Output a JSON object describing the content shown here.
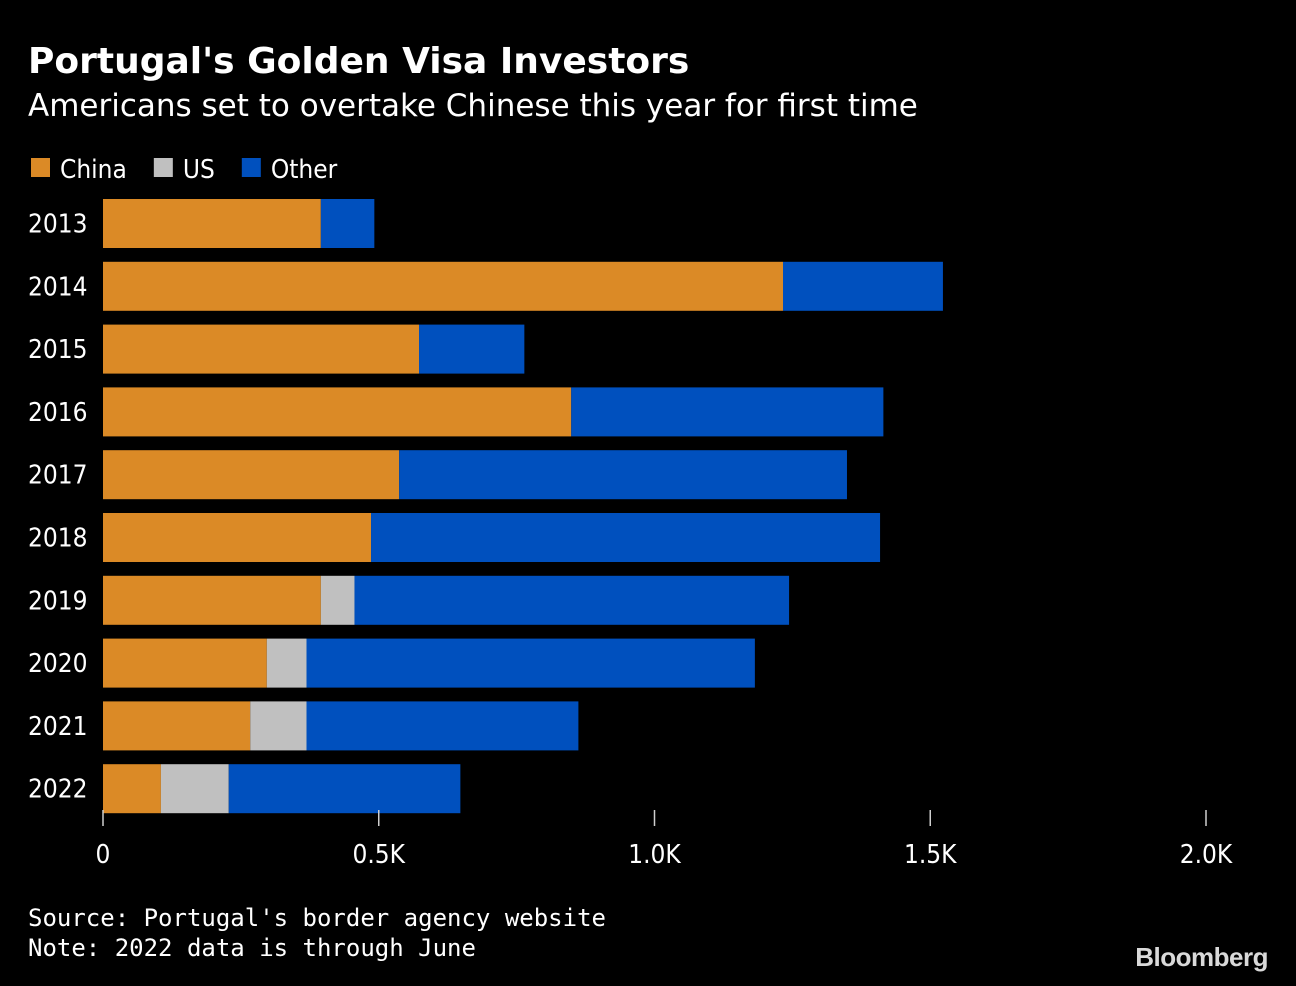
{
  "header": {
    "title": "Portugal's Golden Visa Investors",
    "subtitle": "Americans set to overtake Chinese this year for first time"
  },
  "footer": {
    "source": "Source: Portugal's border agency website",
    "note": "Note: 2022 data is through June",
    "logo": "Bloomberg"
  },
  "colors": {
    "background": "#000000",
    "text": "#ffffff",
    "axis": "#cfcfcf"
  },
  "chart_data": {
    "type": "bar",
    "orientation": "horizontal",
    "stacked": true,
    "title": "Portugal's Golden Visa Investors",
    "subtitle": "Americans set to overtake Chinese this year for first time",
    "categories": [
      "2013",
      "2014",
      "2015",
      "2016",
      "2017",
      "2018",
      "2019",
      "2020",
      "2021",
      "2022"
    ],
    "series": [
      {
        "name": "China",
        "color": "#db8a26",
        "values": [
          395,
          1233,
          573,
          849,
          537,
          486,
          395,
          297,
          267,
          105
        ]
      },
      {
        "name": "US",
        "color": "#c0c0c0",
        "values": [
          0,
          0,
          0,
          0,
          0,
          0,
          61,
          72,
          102,
          123
        ]
      },
      {
        "name": "Other",
        "color": "#0050be",
        "values": [
          97,
          290,
          191,
          566,
          812,
          923,
          788,
          813,
          493,
          420
        ]
      }
    ],
    "xlim": [
      0,
      2000
    ],
    "xticks": [
      {
        "value": 0,
        "label": "0"
      },
      {
        "value": 500,
        "label": "0.5K"
      },
      {
        "value": 1000,
        "label": "1.0K"
      },
      {
        "value": 1500,
        "label": "1.5K"
      },
      {
        "value": 2000,
        "label": "2.0K"
      }
    ],
    "xlabel": "",
    "ylabel": "",
    "legend_position": "top-left",
    "grid": false
  }
}
